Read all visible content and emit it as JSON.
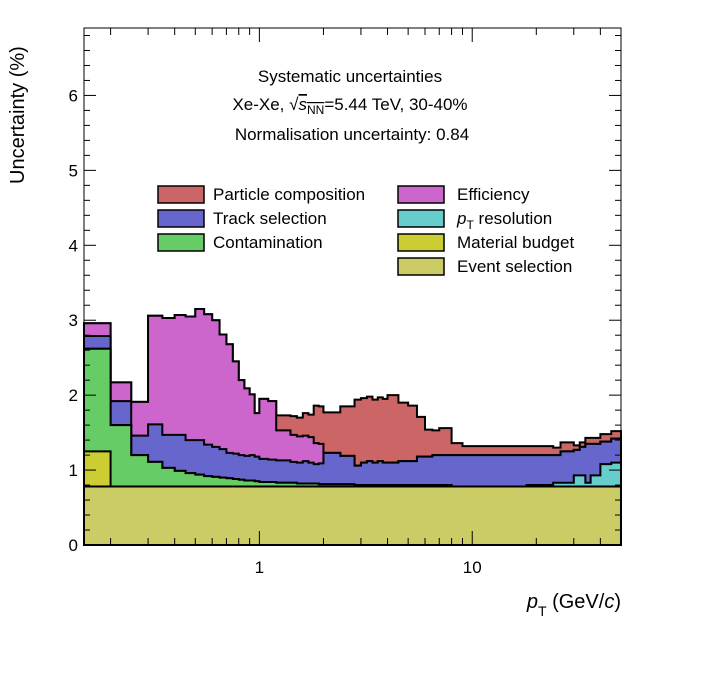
{
  "chart_data": {
    "type": "area",
    "plot_type": "stacked step histogram",
    "xscale": "log",
    "xlim": [
      0.15,
      50
    ],
    "ylim": [
      0,
      6.9
    ],
    "grid": false,
    "legend_position": "top-center",
    "xlabel_main": "p",
    "xlabel_sub": "T",
    "xlabel_unit_open": " (GeV/",
    "xlabel_unit_var": "c",
    "xlabel_unit_close": ")",
    "ylabel": "Uncertainty (%)",
    "x_ticks": [
      1,
      10
    ],
    "x_tick_labels": [
      "1",
      "10"
    ],
    "y_ticks": [
      0,
      1,
      2,
      3,
      4,
      5,
      6
    ],
    "y_tick_labels": [
      "0",
      "1",
      "2",
      "3",
      "4",
      "5",
      "6"
    ],
    "annotations": {
      "line1": "Systematic uncertainties",
      "line2_prefix": "Xe-Xe, ",
      "line2_sqrt_var": "s",
      "line2_sqrt_sub": "NN",
      "line2_suffix": "=5.44 TeV, 30-40%",
      "line3": "Normalisation uncertainty: 0.84"
    },
    "x_bin_edges": [
      0.15,
      0.2,
      0.25,
      0.3,
      0.35,
      0.4,
      0.45,
      0.5,
      0.55,
      0.6,
      0.65,
      0.7,
      0.75,
      0.8,
      0.85,
      0.9,
      0.95,
      1.0,
      1.1,
      1.2,
      1.3,
      1.4,
      1.5,
      1.6,
      1.7,
      1.8,
      1.9,
      2.0,
      2.2,
      2.4,
      2.6,
      2.8,
      3.0,
      3.2,
      3.4,
      3.6,
      3.8,
      4.0,
      4.5,
      5.0,
      5.5,
      6.0,
      6.5,
      7.0,
      8.0,
      9.0,
      10.0,
      11.0,
      12.0,
      13.0,
      14.0,
      15.0,
      16.0,
      18.0,
      20.0,
      22.0,
      24.0,
      26.0,
      28.0,
      30.0,
      32.0,
      34.0,
      36.0,
      40.0,
      45.0,
      50.0
    ],
    "series": [
      {
        "name": "Event selection",
        "color": "#cccc66",
        "values": [
          0.78,
          0.78,
          0.78,
          0.78,
          0.78,
          0.78,
          0.78,
          0.78,
          0.78,
          0.78,
          0.78,
          0.78,
          0.78,
          0.78,
          0.78,
          0.78,
          0.78,
          0.78,
          0.78,
          0.78,
          0.78,
          0.78,
          0.78,
          0.78,
          0.78,
          0.78,
          0.78,
          0.78,
          0.78,
          0.78,
          0.78,
          0.78,
          0.78,
          0.78,
          0.78,
          0.78,
          0.78,
          0.78,
          0.78,
          0.78,
          0.78,
          0.78,
          0.78,
          0.78,
          0.78,
          0.78,
          0.78,
          0.78,
          0.78,
          0.78,
          0.78,
          0.78,
          0.78,
          0.78,
          0.78,
          0.78,
          0.78,
          0.78,
          0.78,
          0.78,
          0.78,
          0.78,
          0.78,
          0.78,
          0.78
        ]
      },
      {
        "name": "Material budget",
        "color": "#cccc33",
        "values": [
          0.47,
          0.0,
          0.0,
          0.0,
          0.0,
          0.0,
          0.0,
          0.0,
          0.0,
          0.0,
          0.0,
          0.0,
          0.0,
          0.0,
          0.0,
          0.0,
          0.0,
          0.0,
          0.0,
          0.0,
          0.0,
          0.0,
          0.0,
          0.0,
          0.0,
          0.0,
          0.0,
          0.0,
          0.0,
          0.0,
          0.0,
          0.0,
          0.0,
          0.0,
          0.0,
          0.0,
          0.0,
          0.0,
          0.0,
          0.0,
          0.0,
          0.0,
          0.0,
          0.0,
          0.0,
          0.0,
          0.0,
          0.0,
          0.0,
          0.0,
          0.0,
          0.0,
          0.0,
          0.0,
          0.0,
          0.0,
          0.0,
          0.0,
          0.0,
          0.0,
          0.0,
          0.0,
          0.0,
          0.0,
          0.0
        ]
      },
      {
        "name": "Contamination",
        "color": "#66cc66",
        "values": [
          1.37,
          0.82,
          0.42,
          0.33,
          0.25,
          0.21,
          0.18,
          0.16,
          0.14,
          0.13,
          0.12,
          0.11,
          0.1,
          0.09,
          0.08,
          0.08,
          0.07,
          0.06,
          0.06,
          0.05,
          0.05,
          0.05,
          0.04,
          0.04,
          0.04,
          0.04,
          0.03,
          0.03,
          0.03,
          0.03,
          0.03,
          0.02,
          0.02,
          0.02,
          0.02,
          0.02,
          0.02,
          0.02,
          0.02,
          0.02,
          0.02,
          0.02,
          0.02,
          0.02,
          0.0,
          0.0,
          0.0,
          0.0,
          0.0,
          0.0,
          0.0,
          0.0,
          0.0,
          0.0,
          0.0,
          0.0,
          0.0,
          0.0,
          0.0,
          0.0,
          0.0,
          0.0,
          0.0,
          0.0,
          0.0
        ]
      },
      {
        "name": "p_T resolution",
        "color": "#66cccc",
        "values": [
          0.0,
          0.0,
          0.0,
          0.0,
          0.0,
          0.0,
          0.0,
          0.0,
          0.0,
          0.0,
          0.0,
          0.0,
          0.0,
          0.0,
          0.0,
          0.0,
          0.0,
          0.0,
          0.0,
          0.0,
          0.0,
          0.0,
          0.0,
          0.0,
          0.0,
          0.0,
          0.0,
          0.0,
          0.0,
          0.0,
          0.0,
          0.0,
          0.0,
          0.0,
          0.0,
          0.0,
          0.0,
          0.0,
          0.0,
          0.0,
          0.0,
          0.0,
          0.0,
          0.0,
          0.0,
          0.0,
          0.0,
          0.0,
          0.0,
          0.0,
          0.0,
          0.0,
          0.0,
          0.02,
          0.02,
          0.02,
          0.05,
          0.05,
          0.05,
          0.15,
          0.15,
          0.05,
          0.15,
          0.3,
          0.32
        ]
      },
      {
        "name": "Track selection",
        "color": "#6666cc",
        "values": [
          0.17,
          0.32,
          0.26,
          0.5,
          0.44,
          0.48,
          0.44,
          0.46,
          0.42,
          0.4,
          0.38,
          0.34,
          0.34,
          0.33,
          0.33,
          0.34,
          0.33,
          0.31,
          0.3,
          0.3,
          0.3,
          0.28,
          0.28,
          0.3,
          0.28,
          0.26,
          0.28,
          0.42,
          0.42,
          0.38,
          0.38,
          0.26,
          0.3,
          0.32,
          0.3,
          0.32,
          0.3,
          0.3,
          0.32,
          0.32,
          0.38,
          0.38,
          0.4,
          0.4,
          0.42,
          0.42,
          0.42,
          0.42,
          0.42,
          0.42,
          0.42,
          0.42,
          0.42,
          0.4,
          0.4,
          0.4,
          0.37,
          0.42,
          0.42,
          0.34,
          0.38,
          0.52,
          0.42,
          0.3,
          0.32
        ]
      },
      {
        "name": "Efficiency",
        "color": "#cc66cc",
        "values": [
          0.17,
          0.25,
          0.45,
          1.45,
          1.56,
          1.6,
          1.65,
          1.75,
          1.74,
          1.69,
          1.53,
          1.45,
          1.23,
          1.0,
          0.9,
          0.81,
          0.58,
          0.8,
          0.78,
          0.4,
          0.4,
          0.36,
          0.35,
          0.34,
          0.34,
          0.28,
          0.26,
          0.0,
          0.0,
          0.0,
          0.0,
          0.0,
          0.0,
          0.0,
          0.0,
          0.0,
          0.0,
          0.0,
          0.0,
          0.0,
          0.0,
          0.0,
          0.0,
          0.0,
          0.0,
          0.0,
          0.0,
          0.0,
          0.0,
          0.0,
          0.0,
          0.0,
          0.0,
          0.0,
          0.0,
          0.0,
          0.0,
          0.0,
          0.0,
          0.0,
          0.0,
          0.0,
          0.0,
          0.0,
          0.0
        ]
      },
      {
        "name": "Particle composition",
        "color": "#cc6666",
        "values": [
          0.0,
          0.0,
          0.0,
          0.0,
          0.0,
          0.0,
          0.0,
          0.0,
          0.0,
          0.0,
          0.0,
          0.0,
          0.0,
          0.0,
          0.0,
          0.0,
          0.0,
          0.0,
          0.0,
          0.2,
          0.2,
          0.25,
          0.25,
          0.3,
          0.3,
          0.5,
          0.5,
          0.54,
          0.54,
          0.66,
          0.66,
          0.88,
          0.86,
          0.86,
          0.84,
          0.85,
          0.85,
          0.9,
          0.78,
          0.74,
          0.53,
          0.36,
          0.33,
          0.36,
          0.16,
          0.12,
          0.12,
          0.12,
          0.12,
          0.12,
          0.12,
          0.12,
          0.12,
          0.12,
          0.12,
          0.12,
          0.1,
          0.12,
          0.12,
          0.06,
          0.06,
          0.08,
          0.08,
          0.1,
          0.1
        ]
      }
    ],
    "legend": [
      {
        "name": "Particle composition",
        "color": "#cc6666"
      },
      {
        "name": "Efficiency",
        "color": "#cc66cc"
      },
      {
        "name": "Track selection",
        "color": "#6666cc"
      },
      {
        "name": "p_T resolution",
        "color": "#66cccc"
      },
      {
        "name": "Contamination",
        "color": "#66cc66"
      },
      {
        "name": "Material budget",
        "color": "#cccc33"
      },
      {
        "name": "Event selection",
        "color": "#cccc66"
      }
    ],
    "legend_labels": {
      "particle_composition": "Particle composition",
      "efficiency": "Efficiency",
      "track_selection": "Track selection",
      "pt_resolution_main": "p",
      "pt_resolution_sub": "T",
      "pt_resolution_rest": " resolution",
      "contamination": "Contamination",
      "material_budget": "Material budget",
      "event_selection": "Event selection"
    }
  }
}
